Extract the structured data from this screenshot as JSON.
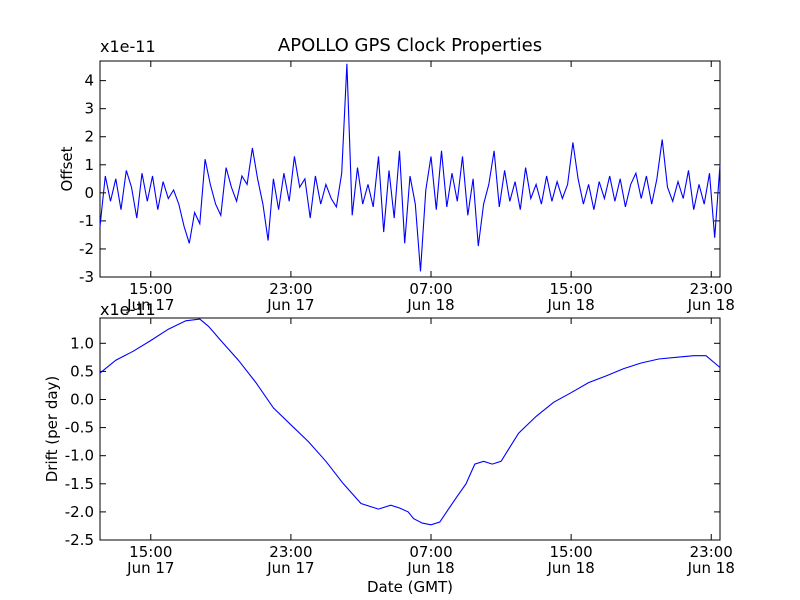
{
  "chart_data": {
    "title": "APOLLO GPS Clock Properties",
    "xlabel": "Date (GMT)",
    "x_ticks": [
      {
        "hours": 15,
        "time": "15:00",
        "date": "Jun 17"
      },
      {
        "hours": 23,
        "time": "23:00",
        "date": "Jun 17"
      },
      {
        "hours": 31,
        "time": "07:00",
        "date": "Jun 18"
      },
      {
        "hours": 39,
        "time": "15:00",
        "date": "Jun 18"
      },
      {
        "hours": 47,
        "time": "23:00",
        "date": "Jun 18"
      }
    ],
    "xlim": [
      12.1,
      47.5
    ],
    "x_unit": "hours since Jun 17 00:00 GMT",
    "panels": [
      {
        "type": "line",
        "ylabel": "Offset",
        "scale_label": "x1e-11",
        "ylim": [
          -3,
          4.7
        ],
        "yticks": [
          -3,
          -2,
          -1,
          0,
          1,
          2,
          3,
          4
        ],
        "ytick_labels": [
          "-3",
          "-2",
          "-1",
          "0",
          "1",
          "2",
          "3",
          "4"
        ],
        "color": "#0000ff",
        "x": [
          12.1,
          12.4,
          12.7,
          13.0,
          13.3,
          13.6,
          13.9,
          14.2,
          14.5,
          14.8,
          15.1,
          15.4,
          15.7,
          16.0,
          16.3,
          16.6,
          16.9,
          17.2,
          17.5,
          17.8,
          18.1,
          18.4,
          18.7,
          19.0,
          19.3,
          19.6,
          19.9,
          20.2,
          20.5,
          20.8,
          21.1,
          21.4,
          21.7,
          22.0,
          22.3,
          22.6,
          22.9,
          23.2,
          23.5,
          23.8,
          24.1,
          24.4,
          24.7,
          25.0,
          25.3,
          25.6,
          25.9,
          26.2,
          26.5,
          26.8,
          27.1,
          27.4,
          27.7,
          28.0,
          28.3,
          28.6,
          28.9,
          29.2,
          29.5,
          29.8,
          30.1,
          30.4,
          30.7,
          31.0,
          31.3,
          31.6,
          31.9,
          32.2,
          32.5,
          32.8,
          33.1,
          33.4,
          33.7,
          34.0,
          34.3,
          34.6,
          34.9,
          35.2,
          35.5,
          35.8,
          36.1,
          36.4,
          36.7,
          37.0,
          37.3,
          37.6,
          37.9,
          38.2,
          38.5,
          38.8,
          39.1,
          39.4,
          39.7,
          40.0,
          40.3,
          40.6,
          40.9,
          41.2,
          41.5,
          41.8,
          42.1,
          42.4,
          42.7,
          43.0,
          43.3,
          43.6,
          43.9,
          44.2,
          44.5,
          44.8,
          45.1,
          45.4,
          45.7,
          46.0,
          46.3,
          46.6,
          46.9,
          47.2,
          47.5
        ],
        "values": [
          -1.2,
          0.6,
          -0.3,
          0.5,
          -0.6,
          0.8,
          0.2,
          -0.9,
          0.7,
          -0.3,
          0.6,
          -0.6,
          0.4,
          -0.2,
          0.1,
          -0.4,
          -1.2,
          -1.8,
          -0.7,
          -1.1,
          1.2,
          0.3,
          -0.4,
          -0.8,
          0.9,
          0.2,
          -0.3,
          0.6,
          0.3,
          1.6,
          0.5,
          -0.4,
          -1.7,
          0.5,
          -0.6,
          0.7,
          -0.3,
          1.3,
          0.2,
          0.5,
          -0.9,
          0.6,
          -0.4,
          0.3,
          -0.2,
          -0.5,
          0.7,
          4.6,
          -0.8,
          0.9,
          -0.4,
          0.3,
          -0.5,
          1.3,
          -1.4,
          0.8,
          -0.9,
          1.5,
          -1.8,
          0.6,
          -0.4,
          -2.8,
          0.1,
          1.3,
          -0.6,
          1.5,
          -0.5,
          0.7,
          -0.3,
          1.3,
          -0.8,
          0.5,
          -1.9,
          -0.4,
          0.3,
          1.5,
          -0.5,
          0.8,
          -0.3,
          0.4,
          -0.6,
          0.9,
          -0.2,
          0.3,
          -0.4,
          0.6,
          -0.3,
          0.4,
          -0.2,
          0.3,
          1.8,
          0.5,
          -0.4,
          0.3,
          -0.6,
          0.4,
          -0.2,
          0.6,
          -0.3,
          0.5,
          -0.5,
          0.3,
          0.7,
          -0.2,
          0.6,
          -0.4,
          0.5,
          1.9,
          0.2,
          -0.3,
          0.4,
          -0.2,
          0.8,
          -0.6,
          0.3,
          -0.4,
          0.7,
          -1.6,
          1.0
        ]
      },
      {
        "type": "line",
        "ylabel": "Drift (per day)",
        "scale_label": "x1e-11",
        "ylim": [
          -2.5,
          1.45
        ],
        "yticks": [
          -2.5,
          -2.0,
          -1.5,
          -1.0,
          -0.5,
          0.0,
          0.5,
          1.0
        ],
        "ytick_labels": [
          "-2.5",
          "-2.0",
          "-1.5",
          "-1.0",
          "-0.5",
          "0.0",
          "0.5",
          "1.0"
        ],
        "color": "#0000ff",
        "x": [
          12.1,
          13.0,
          14.0,
          15.0,
          16.0,
          17.0,
          17.8,
          18.3,
          19.0,
          20.0,
          21.0,
          22.0,
          23.0,
          24.0,
          25.0,
          26.0,
          27.0,
          28.0,
          28.7,
          29.2,
          29.7,
          30.0,
          30.5,
          31.0,
          31.5,
          32.0,
          32.5,
          33.0,
          33.5,
          34.0,
          34.5,
          35.0,
          35.5,
          36.0,
          37.0,
          38.0,
          39.0,
          40.0,
          41.0,
          42.0,
          43.0,
          44.0,
          45.0,
          46.0,
          46.7,
          47.5
        ],
        "values": [
          0.47,
          0.7,
          0.86,
          1.05,
          1.25,
          1.4,
          1.43,
          1.3,
          1.05,
          0.7,
          0.3,
          -0.15,
          -0.45,
          -0.75,
          -1.1,
          -1.5,
          -1.85,
          -1.95,
          -1.88,
          -1.93,
          -2.0,
          -2.12,
          -2.2,
          -2.23,
          -2.18,
          -1.95,
          -1.72,
          -1.5,
          -1.15,
          -1.1,
          -1.15,
          -1.1,
          -0.85,
          -0.6,
          -0.3,
          -0.05,
          0.12,
          0.3,
          0.42,
          0.55,
          0.65,
          0.72,
          0.75,
          0.78,
          0.78,
          0.57
        ]
      }
    ]
  }
}
